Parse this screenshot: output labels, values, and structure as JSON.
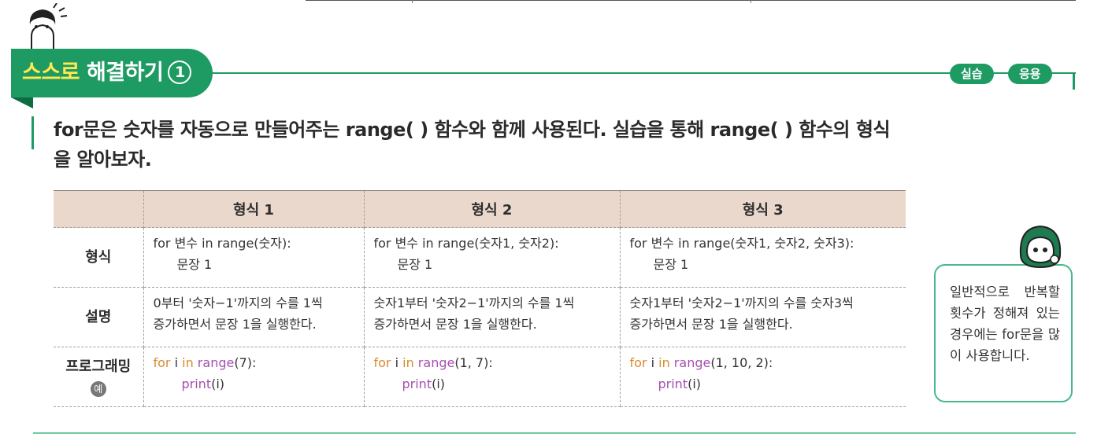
{
  "header": {
    "title_highlight": "스스로",
    "title_rest": "해결하기",
    "number": "1"
  },
  "tags": {
    "practice": "실습",
    "apply": "응용"
  },
  "intro": {
    "line1": "for문은 숫자를 자동으로 만들어주는 range( ) 함수와 함께 사용된다. 실습을 통해 range( ) 함수의 형식",
    "line2": "을 알아보자."
  },
  "table": {
    "headers": [
      "",
      "형식 1",
      "형식 2",
      "형식 3"
    ],
    "row_labels": {
      "format": "형식",
      "description": "설명",
      "programming": "프로그래밍",
      "example_badge": "예"
    },
    "format_rows": [
      {
        "line1": "for 변수 in range(숫자):",
        "line2": "문장 1"
      },
      {
        "line1": "for 변수 in range(숫자1, 숫자2):",
        "line2": "문장 1"
      },
      {
        "line1": "for 변수 in range(숫자1, 숫자2, 숫자3):",
        "line2": "문장 1"
      }
    ],
    "description_rows": [
      {
        "line1": "0부터 '숫자−1'까지의 수를 1씩",
        "line2": "증가하면서 문장 1을 실행한다."
      },
      {
        "line1": "숫자1부터 '숫자2−1'까지의 수를 1씩",
        "line2": "증가하면서 문장 1을 실행한다."
      },
      {
        "line1": "숫자1부터 '숫자2−1'까지의 수를 숫자3씩",
        "line2": "증가하면서 문장 1을 실행한다."
      }
    ],
    "code": {
      "kw_for": "for",
      "var": " i ",
      "kw_in": "in",
      "fn_range": " range",
      "fn_print": "print",
      "print_arg": "(i)",
      "args": [
        "(7):",
        "(1, 7):",
        "(1, 10, 2):"
      ]
    }
  },
  "tip": {
    "text": "일반적으로 반복할 횟수가 정해져 있는 경우에는 for문을 많이 사용합니다."
  },
  "colors": {
    "accent": "#1e9a63",
    "header_row": "#ead8cc",
    "keyword": "#d98a2e",
    "function": "#a64fb0"
  }
}
